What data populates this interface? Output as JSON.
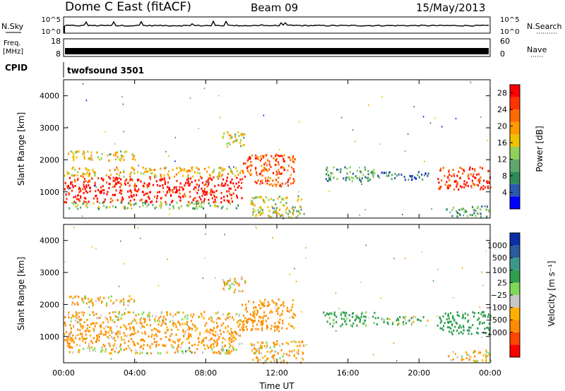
{
  "header": {
    "title": "Dome C East (fitACF)",
    "beam": "Beam 09",
    "date": "15/May/2013"
  },
  "status_panels": {
    "nsky": {
      "label": "N.Sky",
      "ticks": [
        "10^5",
        "10^0"
      ]
    },
    "nsearch": {
      "label": "N.Search",
      "ticks": [
        "10^5",
        "10^0"
      ]
    },
    "freq": {
      "label_line1": "Freq.",
      "label_line2": "[MHz]",
      "ticks": [
        "18",
        "8"
      ]
    },
    "nave": {
      "label": "Nave",
      "ticks": [
        "60",
        "0"
      ]
    },
    "cpid": {
      "label": "CPID",
      "value": "twofsound 3501"
    }
  },
  "colors": {
    "power_scale": [
      "#0000ff",
      "#2b58b0",
      "#2e8b57",
      "#5fa869",
      "#8fd15a",
      "#f2c200",
      "#ff9900",
      "#ff6a00",
      "#ff3300",
      "#ff0000"
    ],
    "velocity_scale": [
      "#ff0000",
      "#ff4500",
      "#ff8c00",
      "#ffb000",
      "#c8c8c8",
      "#7ed957",
      "#2e9e4f",
      "#3a9a8a",
      "#2c5aa0",
      "#0a2ea8"
    ]
  },
  "chart_data": [
    {
      "type": "heatmap",
      "name": "Power",
      "title": "",
      "xlabel": "Time UT",
      "ylabel": "Slant Range [km]",
      "xlim": [
        "00:00",
        "24:00"
      ],
      "ylim": [
        180,
        4500
      ],
      "x_ticks": [
        "00:00",
        "04:00",
        "08:00",
        "12:00",
        "16:00",
        "20:00",
        "00:00"
      ],
      "y_ticks": [
        "1000",
        "2000",
        "3000",
        "4000"
      ],
      "colorbar": {
        "label": "Power [dB]",
        "ticks": [
          "28",
          "24",
          "20",
          "16",
          "12",
          "8",
          "4"
        ],
        "range": [
          0,
          30
        ]
      },
      "regions": [
        {
          "t0": 0.0,
          "t1": 10.0,
          "r0": 700,
          "r1": 1500,
          "value": 28
        },
        {
          "t0": 0.0,
          "t1": 10.0,
          "r0": 1500,
          "r1": 1800,
          "value": 18
        },
        {
          "t0": 0.2,
          "t1": 9.8,
          "r0": 500,
          "r1": 700,
          "value": 12
        },
        {
          "t0": 0.2,
          "t1": 4.0,
          "r0": 2000,
          "r1": 2300,
          "value": 16
        },
        {
          "t0": 8.8,
          "t1": 10.2,
          "r0": 2400,
          "r1": 2900,
          "value": 16
        },
        {
          "t0": 10.0,
          "t1": 13.0,
          "r0": 1200,
          "r1": 2200,
          "value": 24
        },
        {
          "t0": 10.5,
          "t1": 13.5,
          "r0": 200,
          "r1": 900,
          "value": 14
        },
        {
          "t0": 14.5,
          "t1": 17.5,
          "r0": 1350,
          "r1": 1800,
          "value": 10
        },
        {
          "t0": 17.5,
          "t1": 20.5,
          "r0": 1400,
          "r1": 1650,
          "value": 6
        },
        {
          "t0": 21.0,
          "t1": 24.0,
          "r0": 1100,
          "r1": 1800,
          "value": 26
        },
        {
          "t0": 21.5,
          "t1": 24.0,
          "r0": 250,
          "r1": 600,
          "value": 10
        }
      ]
    },
    {
      "type": "heatmap",
      "name": "Velocity",
      "title": "",
      "xlabel": "Time UT",
      "ylabel": "Slant Range [km]",
      "xlim": [
        "00:00",
        "24:00"
      ],
      "ylim": [
        180,
        4500
      ],
      "x_ticks": [
        "00:00",
        "04:00",
        "08:00",
        "12:00",
        "16:00",
        "20:00",
        "00:00"
      ],
      "y_ticks": [
        "1000",
        "2000",
        "3000",
        "4000"
      ],
      "colorbar": {
        "label": "Velocity [m s⁻¹]",
        "ticks": [
          "1000",
          "500",
          "100",
          "25",
          "−25",
          "−100",
          "−500",
          "−1000"
        ]
      },
      "regions": [
        {
          "t0": 0.0,
          "t1": 10.0,
          "r0": 700,
          "r1": 1500,
          "value": -150
        },
        {
          "t0": 0.0,
          "t1": 10.0,
          "r0": 1500,
          "r1": 1800,
          "value": -60
        },
        {
          "t0": 0.2,
          "t1": 9.8,
          "r0": 500,
          "r1": 700,
          "value": -40
        },
        {
          "t0": 0.2,
          "t1": 4.0,
          "r0": 2000,
          "r1": 2300,
          "value": -80
        },
        {
          "t0": 8.8,
          "t1": 10.2,
          "r0": 2400,
          "r1": 2900,
          "value": -60
        },
        {
          "t0": 10.0,
          "t1": 13.0,
          "r0": 1200,
          "r1": 2200,
          "value": -200
        },
        {
          "t0": 10.5,
          "t1": 13.5,
          "r0": 200,
          "r1": 900,
          "value": -100
        },
        {
          "t0": 14.5,
          "t1": 17.5,
          "r0": 1350,
          "r1": 1800,
          "value": 150
        },
        {
          "t0": 17.5,
          "t1": 20.5,
          "r0": 1400,
          "r1": 1650,
          "value": 80
        },
        {
          "t0": 21.0,
          "t1": 24.0,
          "r0": 1100,
          "r1": 1800,
          "value": 300
        },
        {
          "t0": 21.5,
          "t1": 24.0,
          "r0": 250,
          "r1": 600,
          "value": -60
        }
      ]
    }
  ]
}
